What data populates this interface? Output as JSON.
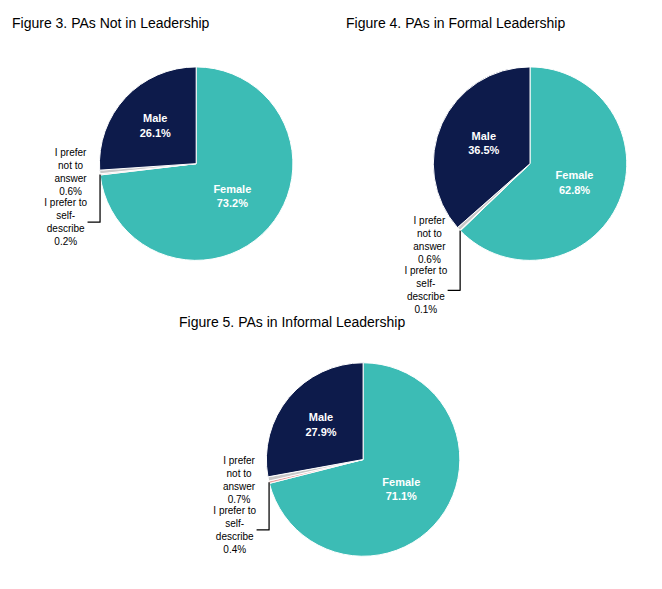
{
  "chart_data": [
    {
      "type": "pie",
      "title": "Figure 3. PAs Not in Leadership",
      "values": [
        73.2,
        0.2,
        0.6,
        26.1
      ],
      "value_labels": [
        "Female\n73.2%",
        "I prefer to\nself-\ndescribe\n0.2%",
        "I prefer\nnot to\nanswer\n0.6%",
        "Male\n26.1%"
      ],
      "colors": [
        "#3cbcb5",
        "#e8a0a0",
        "#c8c8c8",
        "#0d1b4b"
      ],
      "data_labels": true
    },
    {
      "type": "pie",
      "title": "Figure 4. PAs in Formal Leadership",
      "values": [
        62.8,
        0.1,
        0.6,
        36.5
      ],
      "value_labels": [
        "Female\n62.8%",
        "I prefer to\nself-\ndescribe\n0.1%",
        "I prefer\nnot to\nanswer\n0.6%",
        "Male\n36.5%"
      ],
      "colors": [
        "#3cbcb5",
        "#e8a0a0",
        "#c8c8c8",
        "#0d1b4b"
      ],
      "data_labels": true
    },
    {
      "type": "pie",
      "title": "Figure 5. PAs in Informal Leadership",
      "values": [
        71.1,
        0.4,
        0.7,
        27.9
      ],
      "value_labels": [
        "Female\n71.1%",
        "I prefer to\nself-\ndescribe\n0.4%",
        "I prefer\nnot to\nanswer\n0.7%",
        "Male\n27.9%"
      ],
      "colors": [
        "#3cbcb5",
        "#e8a0a0",
        "#c8c8c8",
        "#0d1b4b"
      ],
      "data_labels": true
    }
  ]
}
